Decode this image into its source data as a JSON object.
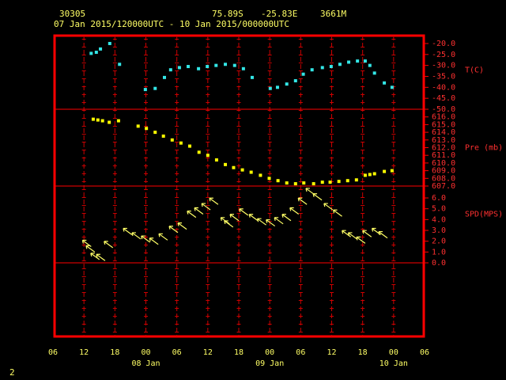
{
  "chart_data": {
    "type": "meteogram",
    "station": "30305",
    "latitude": "75.89S",
    "longitude": "-25.83E",
    "elevation": "3661M",
    "period": "07 Jan 2015/120000UTC - 10 Jan 2015/000000UTC",
    "xlim": [
      0,
      72
    ],
    "xticks": [
      {
        "value": 0,
        "label": "06"
      },
      {
        "value": 6,
        "label": "12"
      },
      {
        "value": 12,
        "label": "18"
      },
      {
        "value": 18,
        "label": "00"
      },
      {
        "value": 24,
        "label": "06"
      },
      {
        "value": 30,
        "label": "12"
      },
      {
        "value": 36,
        "label": "18"
      },
      {
        "value": 42,
        "label": "00"
      },
      {
        "value": 48,
        "label": "06"
      },
      {
        "value": 54,
        "label": "12"
      },
      {
        "value": 60,
        "label": "18"
      },
      {
        "value": 66,
        "label": "00"
      },
      {
        "value": 72,
        "label": "06"
      }
    ],
    "day_labels": [
      {
        "value": 18,
        "label": "08 Jan"
      },
      {
        "value": 42,
        "label": "09 Jan"
      },
      {
        "value": 66,
        "label": "10 Jan"
      }
    ],
    "panels": [
      {
        "type": "scatter",
        "label": "T(C)",
        "color": "#33e6e6",
        "x": [
          7.4,
          8.4,
          9.2,
          11.0,
          12.9,
          17.9,
          19.8,
          21.6,
          22.8,
          24.5,
          26.2,
          28.2,
          29.9,
          31.6,
          33.4,
          35.2,
          36.9,
          38.6,
          42.1,
          43.5,
          45.3,
          47.0,
          48.5,
          50.2,
          52.2,
          53.9,
          55.6,
          57.3,
          59.0,
          60.5,
          61.4,
          62.3,
          64.2,
          65.7
        ],
        "values": [
          -24.5,
          -24,
          -22.5,
          -20,
          -29.5,
          -41,
          -40.5,
          -35.5,
          -32,
          -31,
          -30.5,
          -31.5,
          -30.5,
          -30,
          -29.5,
          -30,
          -31.5,
          -35.5,
          -40.5,
          -40,
          -38.5,
          -37,
          -34,
          -32,
          -31,
          -30.5,
          -29.5,
          -28.5,
          -28,
          -28,
          -30,
          -33.5,
          -38,
          -40
        ],
        "ylim": [
          -50,
          -16.4
        ],
        "yticks": [
          {
            "value": -20,
            "label": "-20.0"
          },
          {
            "value": -25,
            "label": "-25.0"
          },
          {
            "value": -30,
            "label": "-30.0"
          },
          {
            "value": -35,
            "label": "-35.0"
          },
          {
            "value": -40,
            "label": "-40.0"
          },
          {
            "value": -45,
            "label": "-45.0"
          },
          {
            "value": -50,
            "label": "-50.0"
          }
        ]
      },
      {
        "type": "scatter",
        "label": "Pre (mb)",
        "color": "#ffff00",
        "x": [
          7.8,
          8.7,
          9.6,
          10.9,
          12.7,
          16.5,
          18.1,
          19.8,
          21.4,
          23.1,
          24.8,
          26.5,
          28.3,
          30.0,
          31.7,
          33.4,
          35.0,
          36.7,
          38.4,
          40.2,
          41.9,
          43.6,
          45.3,
          47.0,
          48.6,
          50.5,
          52.2,
          53.7,
          55.4,
          57.1,
          58.8,
          60.5,
          61.4,
          62.3,
          64.2,
          65.7
        ],
        "values": [
          615.7,
          615.6,
          615.5,
          615.3,
          615.5,
          614.8,
          614.5,
          614.0,
          613.5,
          613.0,
          612.6,
          612.2,
          611.4,
          611.0,
          610.4,
          609.8,
          609.4,
          609.1,
          608.8,
          608.4,
          608.0,
          607.7,
          607.4,
          607.3,
          607.4,
          607.3,
          607.5,
          607.5,
          607.6,
          607.7,
          607.8,
          608.4,
          608.5,
          608.6,
          608.9,
          609.0
        ],
        "ylim": [
          607,
          617
        ],
        "yticks": [
          {
            "value": 616,
            "label": "616.0"
          },
          {
            "value": 615,
            "label": "615.0"
          },
          {
            "value": 614,
            "label": "614.0"
          },
          {
            "value": 613,
            "label": "613.0"
          },
          {
            "value": 612,
            "label": "612.0"
          },
          {
            "value": 611,
            "label": "611.0"
          },
          {
            "value": 610,
            "label": "610.0"
          },
          {
            "value": 609,
            "label": "609.0"
          },
          {
            "value": 608,
            "label": "608.0"
          },
          {
            "value": 607,
            "label": "607.0"
          }
        ]
      },
      {
        "type": "arrows",
        "label": "SPD(MPS)",
        "color": "#ffff66",
        "x": [
          7.4,
          8.1,
          9.0,
          10.1,
          11.6,
          15.3,
          17.0,
          18.8,
          20.4,
          22.2,
          24.2,
          25.9,
          27.7,
          29.1,
          30.5,
          32.0,
          34.2,
          34.9,
          36.0,
          37.8,
          39.7,
          41.3,
          43.0,
          44.6,
          46.1,
          47.6,
          49.2,
          50.7,
          52.1,
          54.2,
          56.0,
          57.7,
          58.9,
          60.5,
          61.7,
          63.5,
          64.8
        ],
        "values": [
          1.5,
          1.0,
          0.3,
          0.2,
          1.4,
          2.6,
          2.2,
          1.9,
          1.7,
          2.1,
          2.8,
          3.1,
          4.2,
          4.5,
          4.9,
          5.4,
          3.6,
          3.3,
          3.9,
          4.4,
          3.9,
          3.5,
          3.4,
          3.6,
          3.9,
          4.5,
          5.4,
          6.3,
          5.8,
          4.9,
          4.3,
          2.4,
          2.2,
          1.8,
          2.4,
          2.6,
          2.3
        ],
        "ylim": [
          0,
          7.1
        ],
        "yticks": [
          {
            "value": 6,
            "label": "6.0"
          },
          {
            "value": 5,
            "label": "5.0"
          },
          {
            "value": 4,
            "label": "4.0"
          },
          {
            "value": 3,
            "label": "3.0"
          },
          {
            "value": 2,
            "label": "2.0"
          },
          {
            "value": 1,
            "label": "1.0"
          },
          {
            "value": 0,
            "label": "0.0"
          }
        ]
      }
    ]
  },
  "footer": "2"
}
